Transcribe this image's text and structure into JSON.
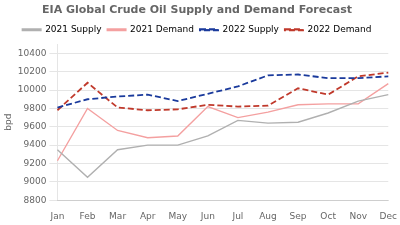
{
  "chart_data": {
    "type": "line",
    "title": "EIA Global Crude Oil Supply and Demand Forecast",
    "ylabel": "bpd",
    "categories": [
      "Jan",
      "Feb",
      "Mar",
      "Apr",
      "May",
      "Jun",
      "Jul",
      "Aug",
      "Sep",
      "Oct",
      "Nov",
      "Dec"
    ],
    "series": [
      {
        "name": "2021 Supply",
        "color": "#b0b0b0",
        "line_style": "solid",
        "values": [
          9350,
          9050,
          9350,
          9400,
          9400,
          9500,
          9670,
          9640,
          9650,
          9750,
          9880,
          9950
        ]
      },
      {
        "name": "2021 Demand",
        "color": "#f4a0a0",
        "line_style": "solid",
        "values": [
          9230,
          9800,
          9560,
          9480,
          9500,
          9820,
          9700,
          9760,
          9840,
          9850,
          9850,
          10070
        ]
      },
      {
        "name": "2022 Supply",
        "color": "#1a3a9c",
        "line_style": "dashed",
        "values": [
          9810,
          9900,
          9930,
          9950,
          9880,
          9960,
          10040,
          10160,
          10170,
          10130,
          10130,
          10150
        ]
      },
      {
        "name": "2022 Demand",
        "color": "#c0392b",
        "line_style": "dashed",
        "values": [
          9780,
          10080,
          9810,
          9780,
          9790,
          9840,
          9820,
          9830,
          10020,
          9950,
          10150,
          10190
        ]
      }
    ],
    "ylim": [
      8800,
      10500
    ],
    "yticks": [
      8800,
      9000,
      9200,
      9400,
      9600,
      9800,
      10000,
      10200,
      10400
    ],
    "grid": true,
    "legend": "top"
  }
}
